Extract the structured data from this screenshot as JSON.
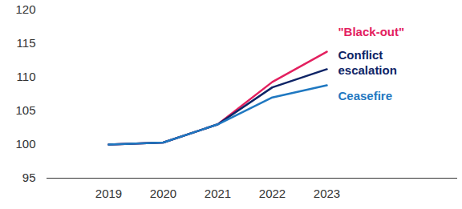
{
  "chart_data": {
    "type": "line",
    "categories": [
      "2019",
      "2020",
      "2021",
      "2022",
      "2023"
    ],
    "series": [
      {
        "name": "\"Black-out\"",
        "color": "#e3205f",
        "values": [
          100,
          100.3,
          103,
          109.3,
          113.8
        ]
      },
      {
        "name": "Conflict escalation",
        "color": "#0e2466",
        "values": [
          100,
          100.3,
          103,
          108.5,
          111.2
        ]
      },
      {
        "name": "Ceasefire",
        "color": "#1f78c1",
        "values": [
          100,
          100.3,
          103,
          107,
          108.8
        ]
      }
    ],
    "ylim": [
      95,
      120
    ],
    "yticks": [
      95,
      100,
      105,
      110,
      115,
      120
    ],
    "grid": false
  }
}
